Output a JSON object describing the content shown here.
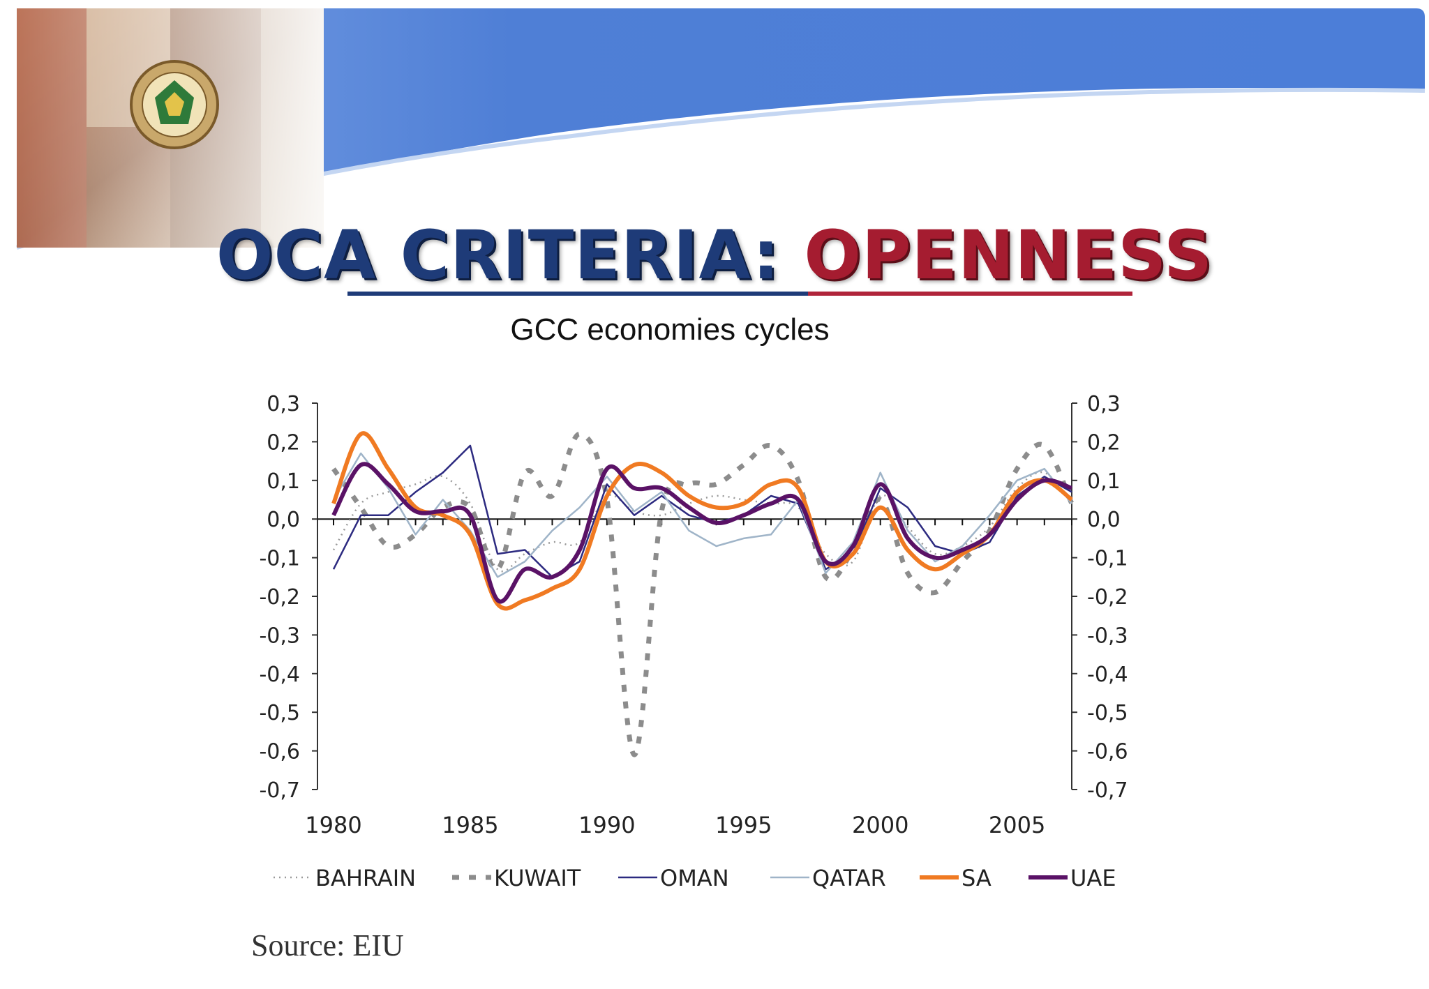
{
  "slide": {
    "title_part1": "OCA CRITERIA: ",
    "title_part2": "OPENNESS",
    "subtitle": "GCC economies cycles",
    "source": "Source: EIU"
  },
  "colors": {
    "banner_blue": "#4f7fd6",
    "title_blue": "#1e3b78",
    "title_red": "#a51c30",
    "bahrain": "#9a9a9a",
    "kuwait": "#8c8c8c",
    "oman": "#2c2a80",
    "qatar": "#9fb4c8",
    "sa": "#f07a22",
    "uae": "#5a1266"
  },
  "chart_data": {
    "type": "line",
    "title": "GCC economies cycles",
    "xlabel": "",
    "ylabel": "",
    "xlim": [
      1980,
      2007
    ],
    "ylim": [
      -0.7,
      0.3
    ],
    "x_ticks": [
      "1980",
      "1985",
      "1990",
      "1995",
      "2000",
      "2005"
    ],
    "y_ticks": [
      "0,3",
      "0,2",
      "0,1",
      "0,0",
      "-0,1",
      "-0,2",
      "-0,3",
      "-0,4",
      "-0,5",
      "-0,6",
      "-0,7"
    ],
    "secondary_y_axis": true,
    "grid": false,
    "legend_position": "bottom",
    "x": [
      1980,
      1981,
      1982,
      1983,
      1984,
      1985,
      1986,
      1987,
      1988,
      1989,
      1990,
      1991,
      1992,
      1993,
      1994,
      1995,
      1996,
      1997,
      1998,
      1999,
      2000,
      2001,
      2002,
      2003,
      2004,
      2005,
      2006,
      2007
    ],
    "series": [
      {
        "name": "BAHRAIN",
        "key": "bahrain",
        "style": "dotted",
        "values": [
          -0.08,
          0.04,
          0.07,
          0.09,
          0.11,
          0.04,
          -0.13,
          -0.09,
          -0.06,
          -0.06,
          0.06,
          0.02,
          0.01,
          0.04,
          0.06,
          0.05,
          0.04,
          0.03,
          -0.09,
          -0.11,
          0.06,
          -0.02,
          -0.09,
          -0.07,
          -0.02,
          0.08,
          0.12,
          0.04
        ]
      },
      {
        "name": "KUWAIT",
        "key": "kuwait",
        "style": "dashed",
        "values": [
          0.13,
          0.03,
          -0.07,
          -0.04,
          0.03,
          0.03,
          -0.13,
          0.12,
          0.06,
          0.22,
          0.05,
          -0.61,
          0.02,
          0.09,
          0.09,
          0.14,
          0.19,
          0.1,
          -0.15,
          -0.08,
          0.05,
          -0.14,
          -0.19,
          -0.11,
          -0.03,
          0.13,
          0.19,
          0.04
        ]
      },
      {
        "name": "OMAN",
        "key": "oman",
        "style": "thin",
        "values": [
          -0.13,
          0.01,
          0.01,
          0.07,
          0.12,
          0.19,
          -0.09,
          -0.08,
          -0.15,
          -0.11,
          0.09,
          0.01,
          0.06,
          0.01,
          -0.01,
          0.01,
          0.06,
          0.04,
          -0.13,
          -0.09,
          0.08,
          0.03,
          -0.07,
          -0.09,
          -0.06,
          0.06,
          0.11,
          0.07
        ]
      },
      {
        "name": "QATAR",
        "key": "qatar",
        "style": "thin",
        "values": [
          0.05,
          0.17,
          0.08,
          -0.04,
          0.05,
          -0.03,
          -0.15,
          -0.11,
          -0.03,
          0.03,
          0.11,
          0.02,
          0.07,
          -0.03,
          -0.07,
          -0.05,
          -0.04,
          0.05,
          -0.14,
          -0.06,
          0.12,
          -0.03,
          -0.11,
          -0.07,
          0.01,
          0.1,
          0.13,
          0.04
        ]
      },
      {
        "name": "SA",
        "key": "sa",
        "style": "thick",
        "values": [
          0.04,
          0.22,
          0.13,
          0.03,
          0.01,
          -0.04,
          -0.22,
          -0.21,
          -0.18,
          -0.13,
          0.06,
          0.14,
          0.12,
          0.06,
          0.03,
          0.04,
          0.09,
          0.08,
          -0.11,
          -0.09,
          0.03,
          -0.08,
          -0.13,
          -0.09,
          -0.04,
          0.07,
          0.1,
          0.05
        ]
      },
      {
        "name": "UAE",
        "key": "uae",
        "style": "thick",
        "values": [
          0.01,
          0.14,
          0.09,
          0.02,
          0.02,
          0.01,
          -0.21,
          -0.13,
          -0.15,
          -0.08,
          0.13,
          0.08,
          0.08,
          0.03,
          -0.01,
          0.01,
          0.04,
          0.05,
          -0.11,
          -0.07,
          0.09,
          -0.05,
          -0.1,
          -0.08,
          -0.04,
          0.05,
          0.1,
          0.08
        ]
      }
    ]
  }
}
